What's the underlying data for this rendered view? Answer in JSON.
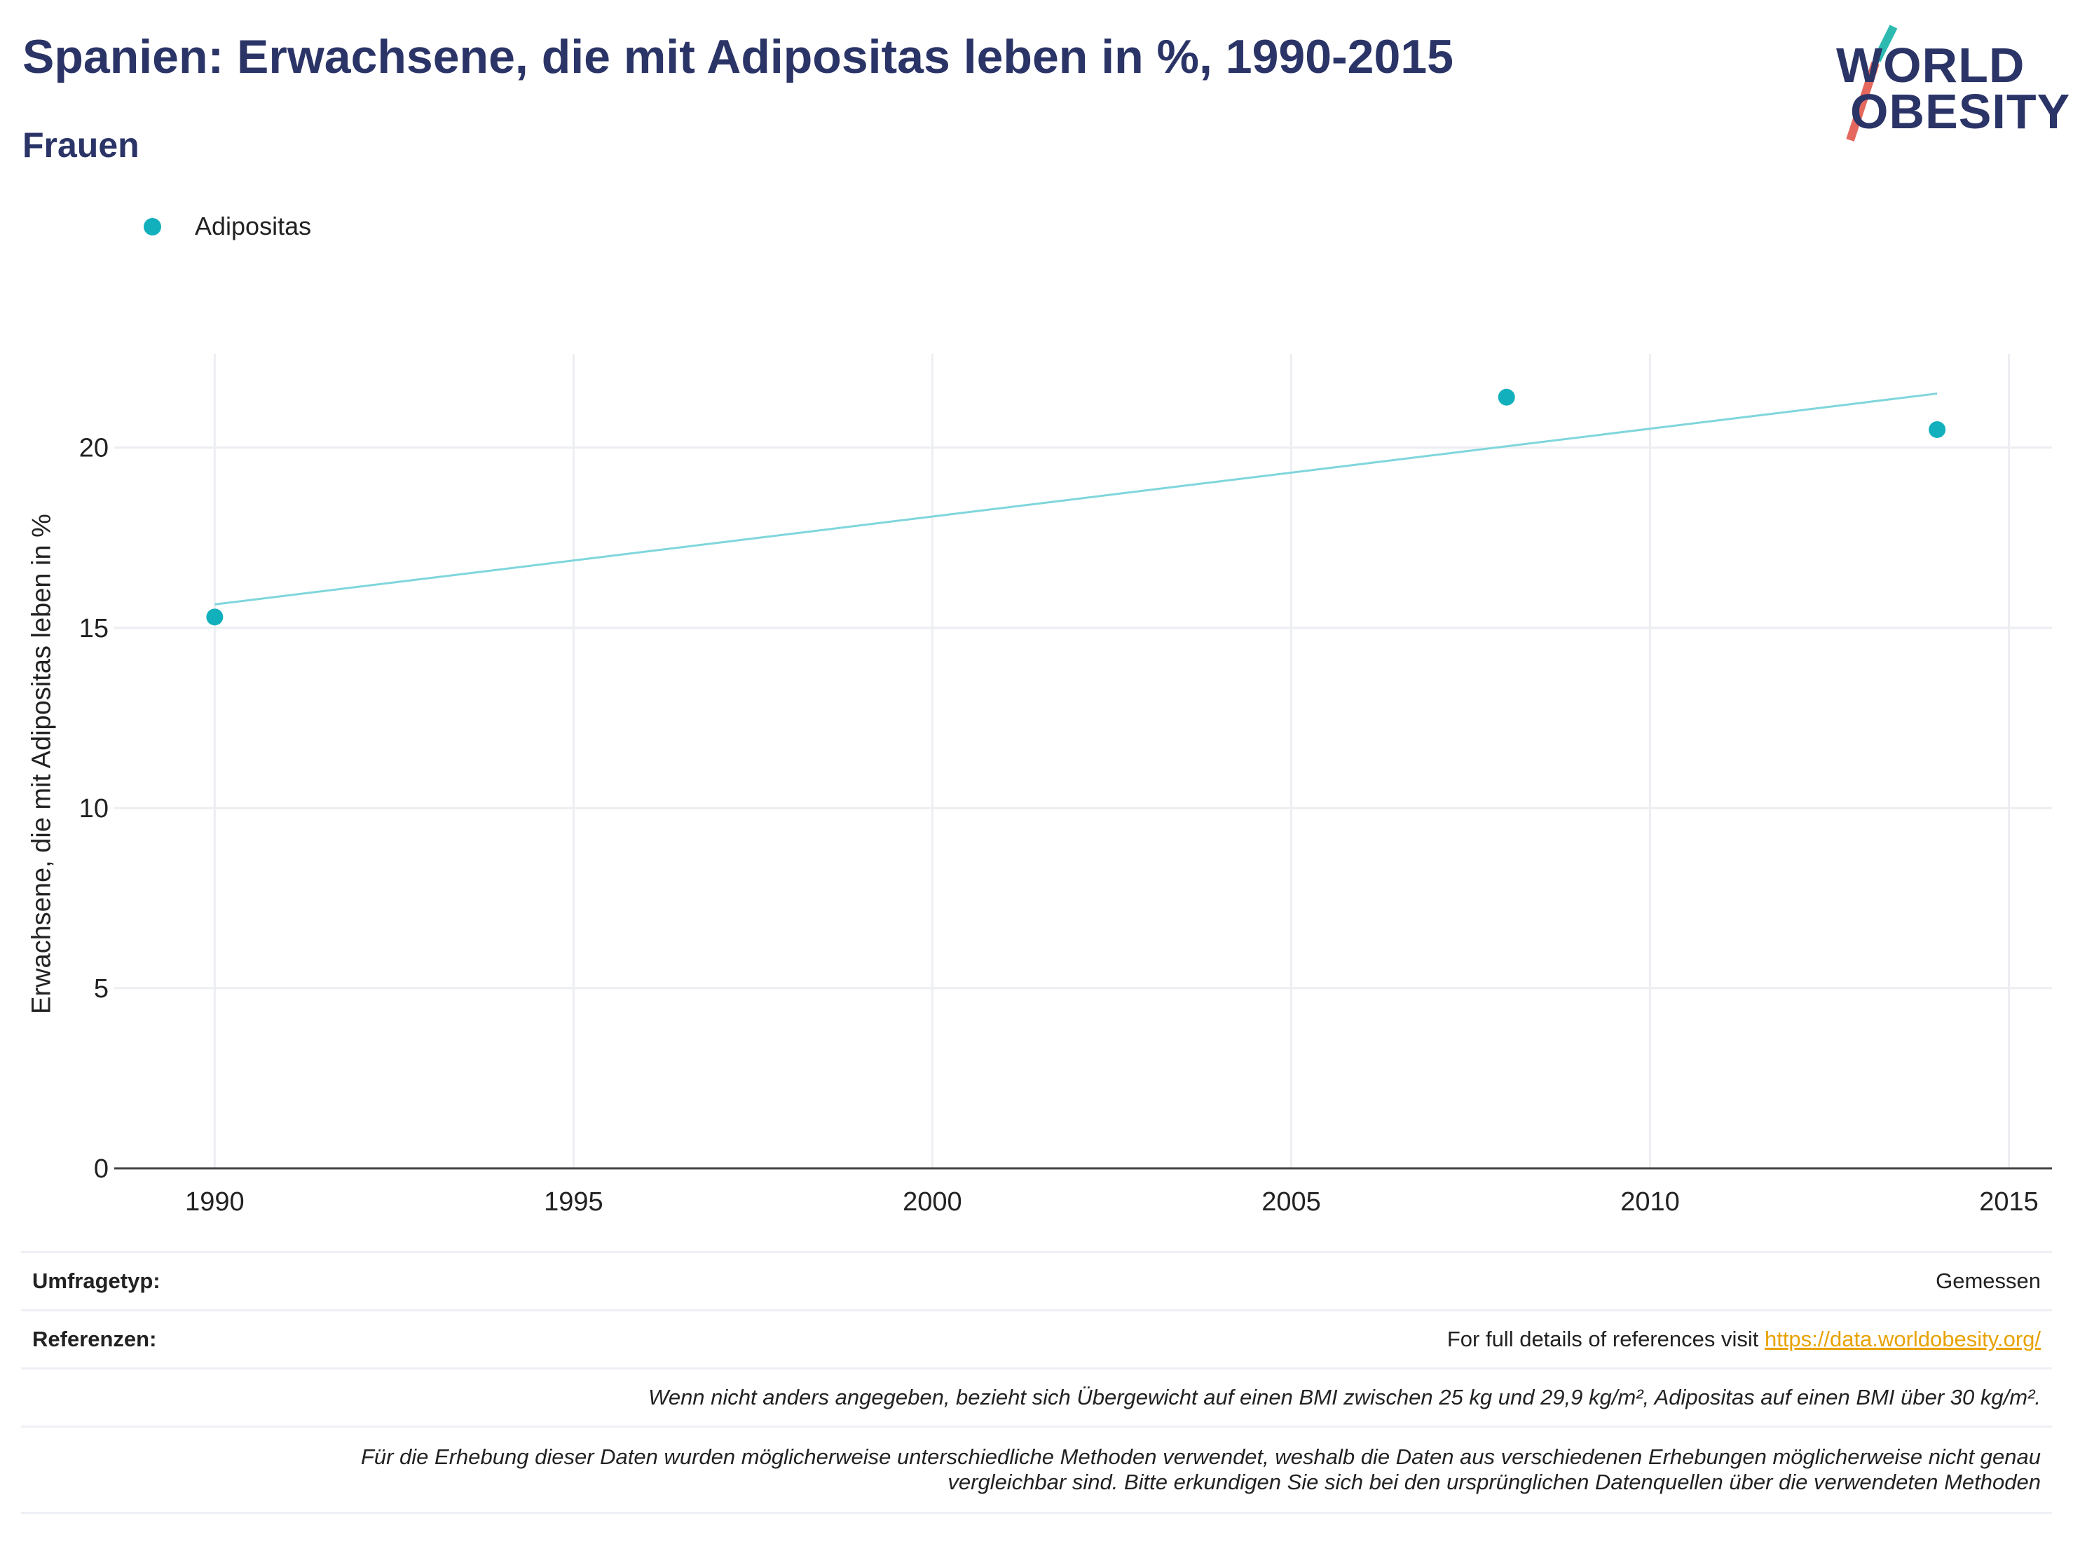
{
  "header": {
    "title": "Spanien: Erwachsene, die mit Adipositas leben in %, 1990-2015",
    "subtitle": "Frauen"
  },
  "logo": {
    "line1": "WORLD",
    "line2": "OBESITY",
    "accent_teal": "#2dbab0",
    "accent_red": "#e4685d"
  },
  "colors": {
    "series": "#12b0bd",
    "trend": "#7fd6db",
    "grid": "#eceef2",
    "text": "#2b3467"
  },
  "chart_data": {
    "type": "scatter",
    "title": "Spanien: Erwachsene, die mit Adipositas leben in %, 1990-2015",
    "subtitle": "Frauen",
    "xlabel": "",
    "ylabel": "Erwachsene, die mit Adipositas leben in %",
    "xlim": [
      1988.6,
      2015.6
    ],
    "ylim": [
      0,
      22.6
    ],
    "xticks": [
      1990,
      1995,
      2000,
      2005,
      2010,
      2015
    ],
    "yticks": [
      0,
      5,
      10,
      15,
      20
    ],
    "grid": true,
    "legend_position": "top-left",
    "series": [
      {
        "name": "Adipositas",
        "points": [
          {
            "x": 1990,
            "y": 15.3
          },
          {
            "x": 2008,
            "y": 21.4
          },
          {
            "x": 2014,
            "y": 20.5
          }
        ]
      }
    ],
    "trendline": {
      "x0": 1990,
      "y0": 15.65,
      "x1": 2014,
      "y1": 21.5
    }
  },
  "notes": {
    "survey_label": "Umfragetyp:",
    "survey_value": "Gemessen",
    "references_label": "Referenzen:",
    "references_text": "For full details of references visit ",
    "references_link": "https://data.worldobesity.org/",
    "definition_note": "Wenn nicht anders angegeben, bezieht sich Übergewicht auf einen BMI zwischen 25 kg und 29,9 kg/m², Adipositas auf einen BMI über 30 kg/m².",
    "method_note_1": "Für die Erhebung dieser Daten wurden möglicherweise unterschiedliche Methoden verwendet, weshalb die Daten aus verschiedenen Erhebungen möglicherweise nicht genau",
    "method_note_2": "vergleichbar sind. Bitte erkundigen Sie sich bei den ursprünglichen Datenquellen über die verwendeten Methoden"
  }
}
